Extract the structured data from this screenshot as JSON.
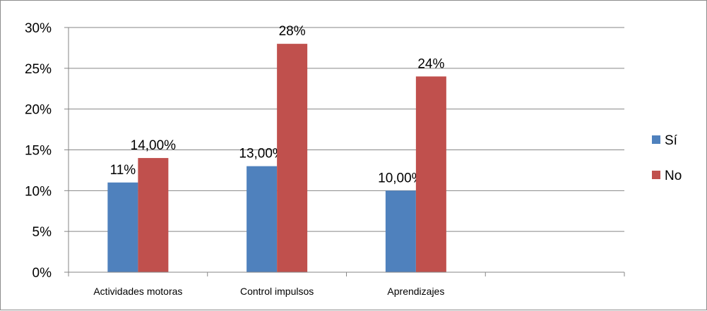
{
  "chart_data": {
    "type": "bar",
    "categories": [
      "Actividades motoras",
      "Control impulsos",
      "Aprendizajes",
      ""
    ],
    "series": [
      {
        "name": "Sí",
        "color": "#4F81BD",
        "values": [
          11,
          13,
          10,
          null
        ],
        "labels": [
          "11%",
          "13,00%",
          "10,00%",
          ""
        ]
      },
      {
        "name": "No",
        "color": "#C0504D",
        "values": [
          14,
          28,
          24,
          null
        ],
        "labels": [
          "14,00%",
          "28%",
          "24%",
          ""
        ]
      }
    ],
    "y_ticks": [
      "0%",
      "5%",
      "10%",
      "15%",
      "20%",
      "25%",
      "30%"
    ],
    "ylim": [
      0,
      30
    ],
    "grid": true,
    "legend_position": "right"
  }
}
